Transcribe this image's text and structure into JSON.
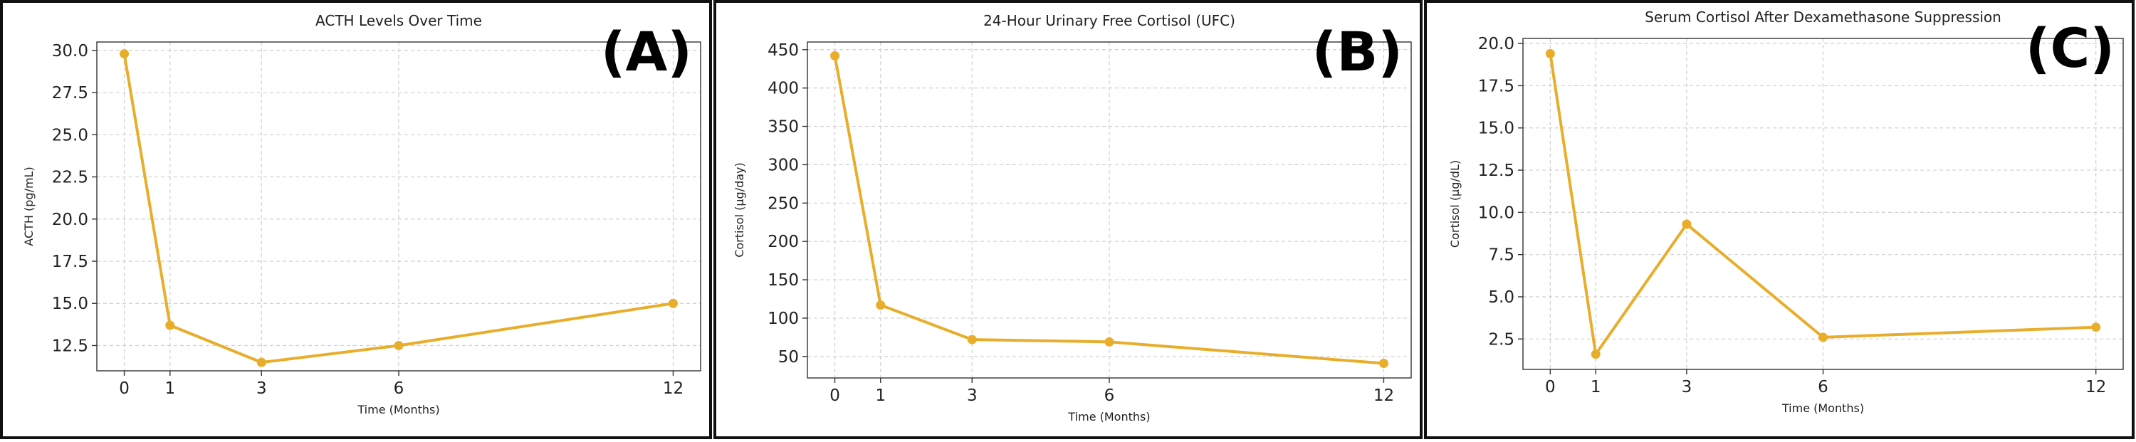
{
  "style": {
    "series_color": "#E8AE2B",
    "grid_color": "#cfcfcf",
    "frame_color": "#111111"
  },
  "chart_data": [
    {
      "panel_label": "(A)",
      "type": "line",
      "title": "ACTH Levels Over Time",
      "xlabel": "Time (Months)",
      "ylabel": "ACTH (pg/mL)",
      "x": [
        0,
        1,
        3,
        6,
        12
      ],
      "x_ticks": [
        "0",
        "1",
        "3",
        "6",
        "12"
      ],
      "xlim": [
        -0.6,
        12.6
      ],
      "y_ticks": [
        "12.5",
        "15.0",
        "17.5",
        "20.0",
        "22.5",
        "25.0",
        "27.5",
        "30.0"
      ],
      "ylim": [
        11.0,
        30.5
      ],
      "grid": true,
      "series": [
        {
          "values": [
            29.8,
            13.7,
            11.5,
            12.5,
            15.0
          ]
        }
      ]
    },
    {
      "panel_label": "(B)",
      "type": "line",
      "title": "24-Hour Urinary Free Cortisol (UFC)",
      "xlabel": "Time (Months)",
      "ylabel": "Cortisol (µg/day)",
      "x": [
        0,
        1,
        3,
        6,
        12
      ],
      "x_ticks": [
        "0",
        "1",
        "3",
        "6",
        "12"
      ],
      "xlim": [
        -0.6,
        12.6
      ],
      "y_ticks": [
        "50",
        "100",
        "150",
        "200",
        "250",
        "300",
        "350",
        "400",
        "450"
      ],
      "ylim": [
        22,
        460
      ],
      "grid": true,
      "series": [
        {
          "values": [
            442,
            117,
            72,
            69,
            41
          ]
        }
      ]
    },
    {
      "panel_label": "(C)",
      "type": "line",
      "title": "Serum Cortisol After Dexamethasone Suppression",
      "xlabel": "Time (Months)",
      "ylabel": "Cortisol (µg/dL)",
      "x": [
        0,
        1,
        3,
        6,
        12
      ],
      "x_ticks": [
        "0",
        "1",
        "3",
        "6",
        "12"
      ],
      "xlim": [
        -0.6,
        12.6
      ],
      "y_ticks": [
        "2.5",
        "5.0",
        "7.5",
        "10.0",
        "12.5",
        "15.0",
        "17.5",
        "20.0"
      ],
      "ylim": [
        0.7,
        20.3
      ],
      "grid": true,
      "series": [
        {
          "values": [
            19.4,
            1.6,
            9.3,
            2.6,
            3.2
          ]
        }
      ]
    }
  ]
}
